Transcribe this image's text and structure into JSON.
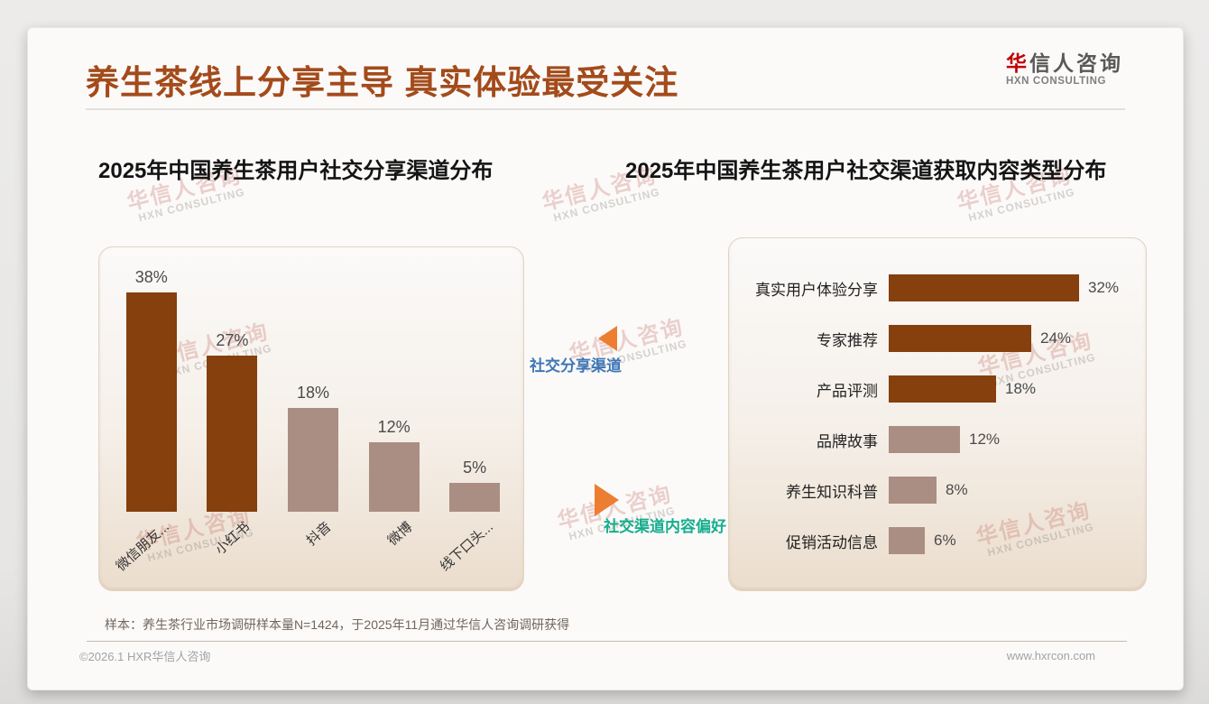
{
  "header": {
    "title": "养生茶线上分享主导 真实体验最受关注",
    "logo": {
      "zh_red": "华",
      "zh_rest": "信人咨询",
      "en": "HXN CONSULTING"
    }
  },
  "watermark": {
    "line1": "华信人咨询",
    "line2": "HXN CONSULTING"
  },
  "connector": {
    "share_channel_label": "社交分享渠道",
    "content_preference_label": "社交渠道内容偏好"
  },
  "chart_data": [
    {
      "type": "bar",
      "title": "2025年中国养生茶用户社交分享渠道分布",
      "categories": [
        "微信朋友...",
        "小红书",
        "抖音",
        "微博",
        "线下口头..."
      ],
      "values": [
        38,
        27,
        18,
        12,
        5
      ],
      "data_labels": [
        "38%",
        "27%",
        "18%",
        "12%",
        "5%"
      ],
      "bar_palette": [
        "dark",
        "dark",
        "light",
        "light",
        "light"
      ],
      "unit": "%",
      "ylim": [
        0,
        40
      ],
      "grid": false,
      "legend": false
    },
    {
      "type": "bar-horizontal",
      "title": "2025年中国养生茶用户社交渠道获取内容类型分布",
      "categories": [
        "真实用户体验分享",
        "专家推荐",
        "产品评测",
        "品牌故事",
        "养生知识科普",
        "促销活动信息"
      ],
      "values": [
        32,
        24,
        18,
        12,
        8,
        6
      ],
      "data_labels": [
        "32%",
        "24%",
        "18%",
        "12%",
        "8%",
        "6%"
      ],
      "bar_palette": [
        "dark",
        "dark",
        "dark",
        "light",
        "light",
        "light"
      ],
      "unit": "%",
      "xlim": [
        0,
        35
      ],
      "grid": false,
      "legend": false
    }
  ],
  "colors": {
    "title": "#A34B1B",
    "bar_dark": "#85400E",
    "bar_light": "#AA8E83",
    "arrow": "#ED7D31",
    "share_label": "#3E76B5",
    "preference_label": "#16AD8D"
  },
  "footer": {
    "note": "样本：养生茶行业市场调研样本量N=1424，于2025年11月通过华信人咨询调研获得",
    "copyright": "©2026.1 HXR华信人咨询",
    "website": "www.hxrcon.com"
  }
}
